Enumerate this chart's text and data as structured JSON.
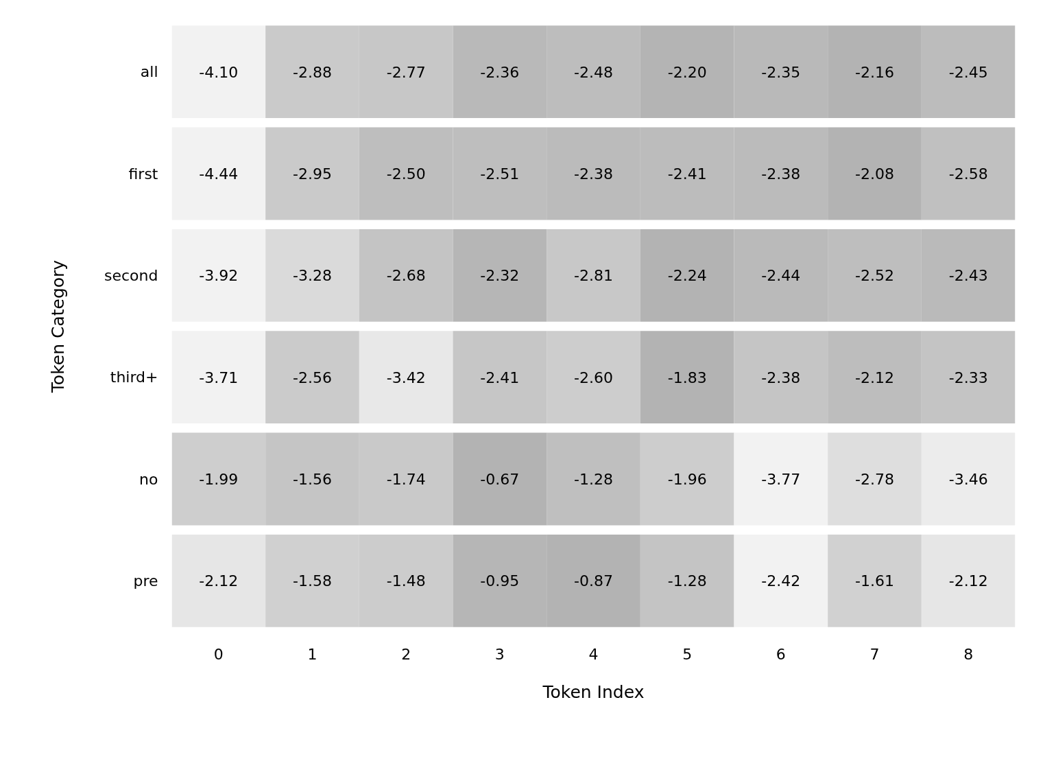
{
  "chart_data": {
    "type": "heatmap",
    "xlabel": "Token Index",
    "ylabel": "Token Category",
    "categories": [
      "0",
      "1",
      "2",
      "3",
      "4",
      "5",
      "6",
      "7",
      "8"
    ],
    "y_categories": [
      "all",
      "first",
      "second",
      "third+",
      "no",
      "pre"
    ],
    "cells": [
      [
        -4.1,
        -2.88,
        -2.77,
        -2.36,
        -2.48,
        -2.2,
        -2.35,
        -2.16,
        -2.45
      ],
      [
        -4.44,
        -2.95,
        -2.5,
        -2.51,
        -2.38,
        -2.41,
        -2.38,
        -2.08,
        -2.58
      ],
      [
        -3.92,
        -3.28,
        -2.68,
        -2.32,
        -2.81,
        -2.24,
        -2.44,
        -2.52,
        -2.43
      ],
      [
        -3.71,
        -2.56,
        -3.42,
        -2.41,
        -2.6,
        -1.83,
        -2.38,
        -2.12,
        -2.33
      ],
      [
        -1.99,
        -1.56,
        -1.74,
        -0.67,
        -1.28,
        -1.96,
        -3.77,
        -2.78,
        -3.46
      ],
      [
        -2.12,
        -1.58,
        -1.48,
        -0.95,
        -0.87,
        -1.28,
        -2.42,
        -1.61,
        -2.12
      ]
    ],
    "cell_labels": [
      [
        "-4.10",
        "-2.88",
        "-2.77",
        "-2.36",
        "-2.48",
        "-2.20",
        "-2.35",
        "-2.16",
        "-2.45"
      ],
      [
        "-4.44",
        "-2.95",
        "-2.50",
        "-2.51",
        "-2.38",
        "-2.41",
        "-2.38",
        "-2.08",
        "-2.58"
      ],
      [
        "-3.92",
        "-3.28",
        "-2.68",
        "-2.32",
        "-2.81",
        "-2.24",
        "-2.44",
        "-2.52",
        "-2.43"
      ],
      [
        "-3.71",
        "-2.56",
        "-3.42",
        "-2.41",
        "-2.60",
        "-1.83",
        "-2.38",
        "-2.12",
        "-2.33"
      ],
      [
        "-1.99",
        "-1.56",
        "-1.74",
        "-0.67",
        "-1.28",
        "-1.96",
        "-3.77",
        "-2.78",
        "-3.46"
      ],
      [
        "-2.12",
        "-1.58",
        "-1.48",
        "-0.95",
        "-0.87",
        "-1.28",
        "-2.42",
        "-1.61",
        "-2.12"
      ]
    ],
    "grid": false
  }
}
